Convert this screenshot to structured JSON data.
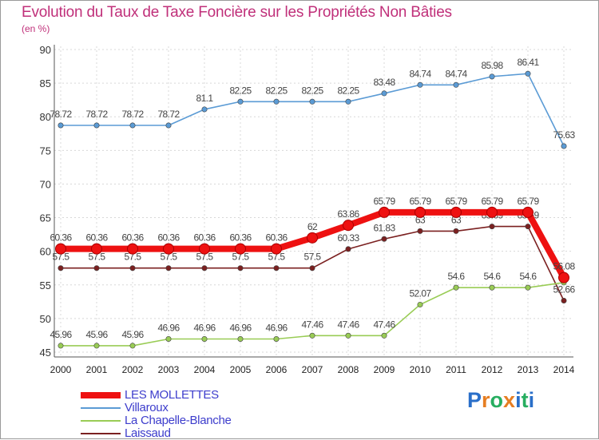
{
  "title": "Evolution du Taux de Taxe Foncière sur les Propriétés Non Bâties",
  "subtitle": "(en %)",
  "logo": {
    "letters": [
      "P",
      "r",
      "o",
      "x",
      "i",
      "t",
      "i"
    ],
    "colors": [
      "#2a6fc9",
      "#e67e22",
      "#27ae60",
      "#e67e22",
      "#2a6fc9",
      "#27ae60",
      "#2a6fc9"
    ]
  },
  "chart_data": {
    "type": "line",
    "title": "Evolution du Taux de Taxe Foncière sur les Propriétés Non Bâties",
    "ylabel": "(en %)",
    "xlabel": "",
    "x": [
      "2000",
      "2001",
      "2002",
      "2003",
      "2004",
      "2005",
      "2006",
      "2007",
      "2008",
      "2009",
      "2010",
      "2011",
      "2012",
      "2013",
      "2014"
    ],
    "ylim": [
      45,
      90
    ],
    "yticks": [
      "45",
      "50",
      "55",
      "60",
      "65",
      "70",
      "75",
      "80",
      "85",
      "90"
    ],
    "grid": true,
    "legend": "bottom-left",
    "series": [
      {
        "name": "Villaroux",
        "color": "#5b9bd5",
        "emphasis": false,
        "values": [
          78.72,
          78.72,
          78.72,
          78.72,
          81.1,
          82.25,
          82.25,
          82.25,
          82.25,
          83.48,
          84.74,
          84.74,
          85.98,
          86.41,
          75.63
        ],
        "labels": [
          "78.72",
          "78.72",
          "78.72",
          "78.72",
          "81.1",
          "82.25",
          "82.25",
          "82.25",
          "82.25",
          "83.48",
          "84.74",
          "84.74",
          "85.98",
          "86.41",
          "75.63"
        ]
      },
      {
        "name": "Laissaud",
        "color": "#7b2020",
        "emphasis": false,
        "values": [
          57.5,
          57.5,
          57.5,
          57.5,
          57.5,
          57.5,
          57.5,
          57.5,
          60.33,
          61.83,
          63,
          63,
          63.69,
          63.69,
          52.66
        ],
        "labels": [
          "57.5",
          "57.5",
          "57.5",
          "57.5",
          "57.5",
          "57.5",
          "57.5",
          "57.5",
          "60.33",
          "61.83",
          "63",
          "63",
          "63.69",
          "63.69",
          "52.66"
        ]
      },
      {
        "name": "La Chapelle-Blanche",
        "color": "#99cc55",
        "emphasis": false,
        "values": [
          45.96,
          45.96,
          45.96,
          46.96,
          46.96,
          46.96,
          46.96,
          47.46,
          47.46,
          47.46,
          52.07,
          54.6,
          54.6,
          54.6,
          55.35
        ],
        "labels": [
          "45.96",
          "45.96",
          "45.96",
          "46.96",
          "46.96",
          "46.96",
          "46.96",
          "47.46",
          "47.46",
          "47.46",
          "52.07",
          "54.6",
          "54.6",
          "54.6",
          ""
        ]
      },
      {
        "name": "LES MOLLETTES",
        "color": "#ee1111",
        "emphasis": true,
        "values": [
          60.36,
          60.36,
          60.36,
          60.36,
          60.36,
          60.36,
          60.36,
          62,
          63.86,
          65.79,
          65.79,
          65.79,
          65.79,
          65.79,
          56.08
        ],
        "labels": [
          "60.36",
          "60.36",
          "60.36",
          "60.36",
          "60.36",
          "60.36",
          "60.36",
          "62",
          "63.86",
          "65.79",
          "65.79",
          "65.79",
          "65.79",
          "65.79",
          "56.08"
        ]
      }
    ],
    "legend_order": [
      "LES MOLLETTES",
      "Villaroux",
      "La Chapelle-Blanche",
      "Laissaud"
    ]
  }
}
